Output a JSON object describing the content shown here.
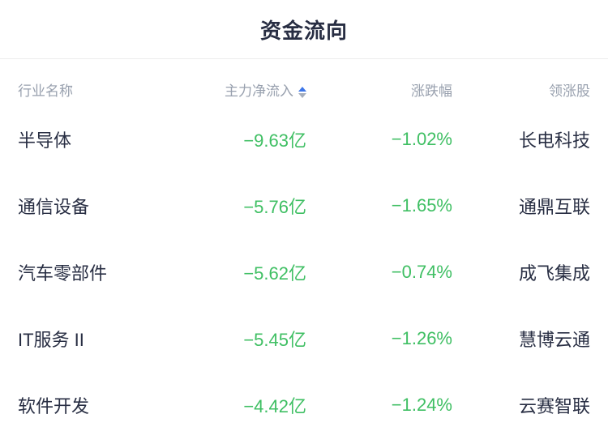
{
  "title": "资金流向",
  "table": {
    "columns": [
      {
        "label": "行业名称",
        "align": "left"
      },
      {
        "label": "主力净流入",
        "align": "right",
        "sortable": true,
        "sort_state": "ascending-active"
      },
      {
        "label": "涨跌幅",
        "align": "right"
      },
      {
        "label": "领涨股",
        "align": "right"
      }
    ],
    "rows": [
      {
        "industry": "半导体",
        "inflow": "−9.63亿",
        "change": "−1.02%",
        "stock": "长电科技"
      },
      {
        "industry": "通信设备",
        "inflow": "−5.76亿",
        "change": "−1.65%",
        "stock": "通鼎互联"
      },
      {
        "industry": "汽车零部件",
        "inflow": "−5.62亿",
        "change": "−0.74%",
        "stock": "成飞集成"
      },
      {
        "industry": "IT服务 II",
        "inflow": "−5.45亿",
        "change": "−1.26%",
        "stock": "慧博云通"
      },
      {
        "industry": "软件开发",
        "inflow": "−4.42亿",
        "change": "−1.24%",
        "stock": "云赛智联"
      }
    ]
  },
  "colors": {
    "negative_value_green": "#3fbf63",
    "sort_active_blue": "#3d76e8",
    "sort_inactive_gray": "#a6aebc",
    "text_dark": "#282e43",
    "header_gray": "#98a0ae",
    "divider": "#ededed"
  },
  "icons": {
    "sort": "sort-arrows-icon"
  }
}
